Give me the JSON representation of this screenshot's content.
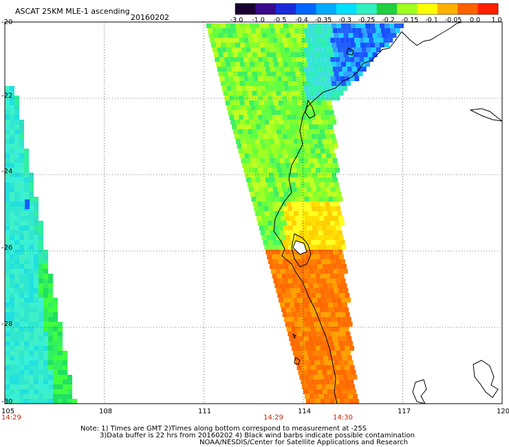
{
  "header": {
    "title": "ASCAT 25KM MLE-1 ascending",
    "date": "20160202"
  },
  "colorbar": {
    "labels": [
      "-3.0",
      "-1.0",
      "-0.5",
      "-0.4",
      "-0.35",
      "-0.3",
      "-0.25",
      "-0.2",
      "-0.15",
      "-0.1",
      "-0.05",
      "0.0",
      "1.0"
    ],
    "colors": [
      "#1a0030",
      "#3a0a8a",
      "#1a2ad8",
      "#0066ff",
      "#00aaff",
      "#00e0ff",
      "#30f0c0",
      "#20d040",
      "#a0ff20",
      "#ffff00",
      "#ffb000",
      "#ff6000",
      "#ff2000"
    ]
  },
  "axes": {
    "lon_ticks": [
      "105",
      "108",
      "111",
      "114",
      "117",
      "120"
    ],
    "lat_ticks": [
      "-20",
      "-22",
      "-24",
      "-26",
      "-28",
      "-30"
    ]
  },
  "pass_times": [
    "14:29",
    "14:29",
    "14:30"
  ],
  "notes": {
    "line1": "Note: 1) Times are GMT 2)Times along bottom correspond to measurement at -25S",
    "line2": "3)Data buffer is 22 hrs from 20160202 4) Black wind barbs indicate possible contamination",
    "line3": "NOAA/NESDIS/Center for Satellite Applications and Research"
  }
}
